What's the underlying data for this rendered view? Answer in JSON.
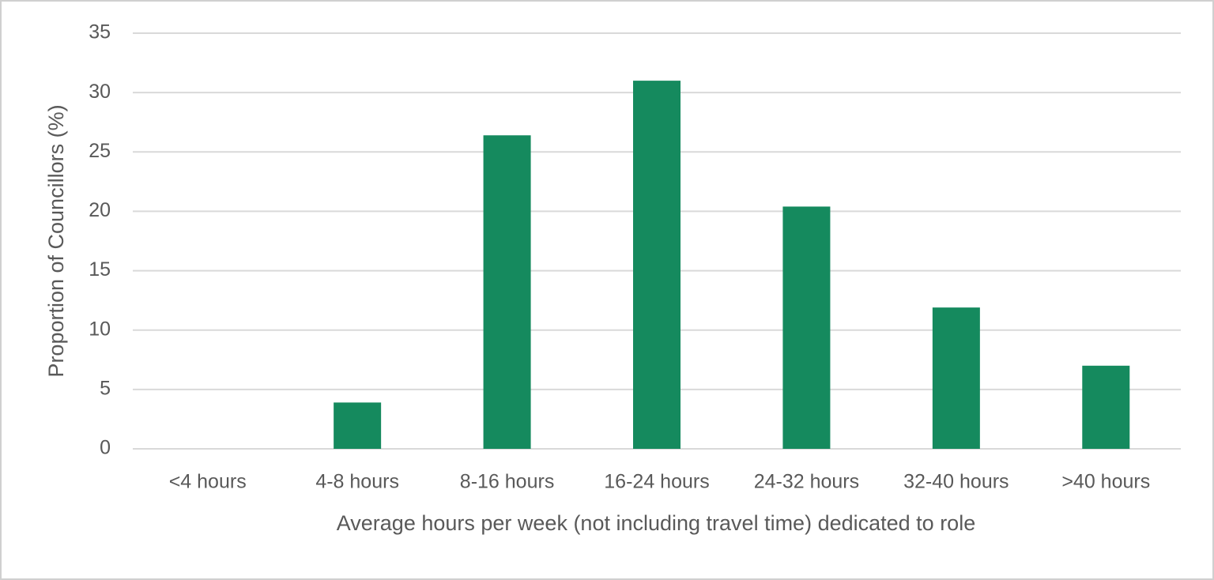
{
  "chart_data": {
    "type": "bar",
    "categories": [
      "<4 hours",
      "4-8 hours",
      "8-16 hours",
      "16-24 hours",
      "24-32 hours",
      "32-40 hours",
      ">40 hours"
    ],
    "values": [
      0,
      3.9,
      26.4,
      31.0,
      20.4,
      11.9,
      7.0
    ],
    "color": "#158a5e",
    "x_label": "Average hours per week (not including travel time) dedicated to role",
    "y_label": "Proportion of Councillors (%)",
    "ylim": [
      0,
      35
    ],
    "yticks": [
      0,
      5,
      10,
      15,
      20,
      25,
      30,
      35
    ],
    "grid": true
  }
}
